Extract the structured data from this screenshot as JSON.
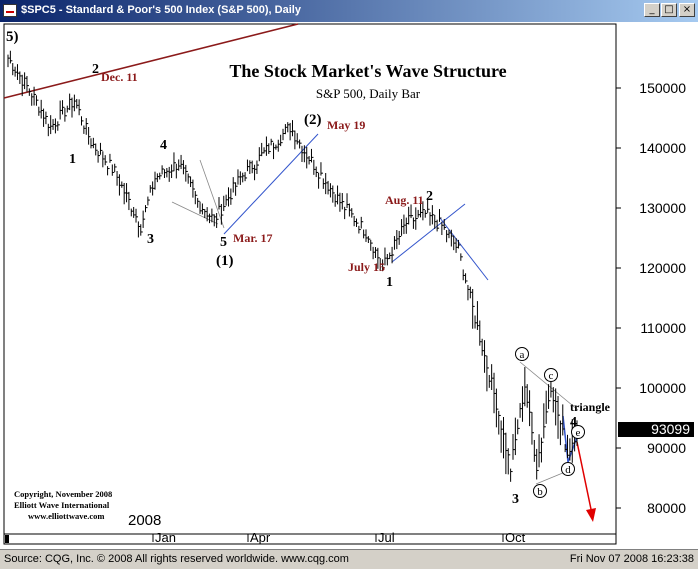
{
  "window": {
    "title": "$SPC5 - Standard & Poor's 500 Index (S&P 500), Daily",
    "btn_minimize": "_",
    "btn_maximize": "□",
    "btn_close": "×"
  },
  "status": {
    "source": "Source: CQG, Inc. © 2008 All rights reserved worldwide. www.cqg.com",
    "timestamp": "Fri Nov 07 2008 16:23:38"
  },
  "colors": {
    "price": "#000000",
    "trendline": "#8b0000",
    "accent": "#8b1a1a",
    "arrow": "#e00000",
    "channel": "#3355cc"
  },
  "chart_data": {
    "type": "bar",
    "title": "The Stock Market's Wave Structure",
    "subtitle": "S&P 500, Daily Bar",
    "y_ticks": [
      "80000",
      "90000",
      "100000",
      "110000",
      "120000",
      "130000",
      "140000",
      "150000"
    ],
    "x_ticks": [
      "2008",
      "Jan",
      "Apr",
      "Jul",
      "Oct"
    ],
    "last_price": "93099",
    "ylim": [
      75000,
      158000
    ],
    "anchors": [
      {
        "i": 0,
        "v": 155000
      },
      {
        "i": 10,
        "v": 149000
      },
      {
        "i": 18,
        "v": 143500
      },
      {
        "i": 28,
        "v": 148000
      },
      {
        "i": 35,
        "v": 141000
      },
      {
        "i": 45,
        "v": 136000
      },
      {
        "i": 56,
        "v": 127000
      },
      {
        "i": 62,
        "v": 135000
      },
      {
        "i": 72,
        "v": 137500
      },
      {
        "i": 80,
        "v": 131000
      },
      {
        "i": 87,
        "v": 128000
      },
      {
        "i": 98,
        "v": 135000
      },
      {
        "i": 110,
        "v": 140000
      },
      {
        "i": 119,
        "v": 143500
      },
      {
        "i": 125,
        "v": 139500
      },
      {
        "i": 140,
        "v": 131000
      },
      {
        "i": 152,
        "v": 125500
      },
      {
        "i": 158,
        "v": 120000
      },
      {
        "i": 168,
        "v": 127500
      },
      {
        "i": 176,
        "v": 129000
      },
      {
        "i": 183,
        "v": 127000
      },
      {
        "i": 190,
        "v": 123000
      },
      {
        "i": 198,
        "v": 110000
      },
      {
        "i": 206,
        "v": 97500
      },
      {
        "i": 212,
        "v": 86500
      },
      {
        "i": 218,
        "v": 100500
      },
      {
        "i": 223,
        "v": 87000
      },
      {
        "i": 229,
        "v": 100500
      },
      {
        "i": 236,
        "v": 89000
      },
      {
        "i": 240,
        "v": 93099
      }
    ],
    "annotations": {
      "wave_5_top": "5)",
      "wave_2": "2",
      "dec11": "Dec. 11",
      "wave_1": "1",
      "wave_3": "3",
      "wave_4": "4",
      "wave_3b": "3",
      "wave_5": "5",
      "mar17": "Mar. 17",
      "wave_circ1": "(1)",
      "wave_circ2": "(2)",
      "may19": "May 19",
      "aug11": "Aug. 11",
      "wave_2b": "2",
      "july15": "July 15",
      "wave_1b": "1",
      "wave_a": "a",
      "wave_b": "b",
      "wave_c": "c",
      "wave_d": "d",
      "wave_e": "e",
      "wave_3c": "3",
      "wave_4b": "4",
      "triangle": "triangle"
    },
    "copyright": [
      "Copyright, November 2008",
      "Elliott Wave International",
      "www.elliottwave.com"
    ]
  }
}
